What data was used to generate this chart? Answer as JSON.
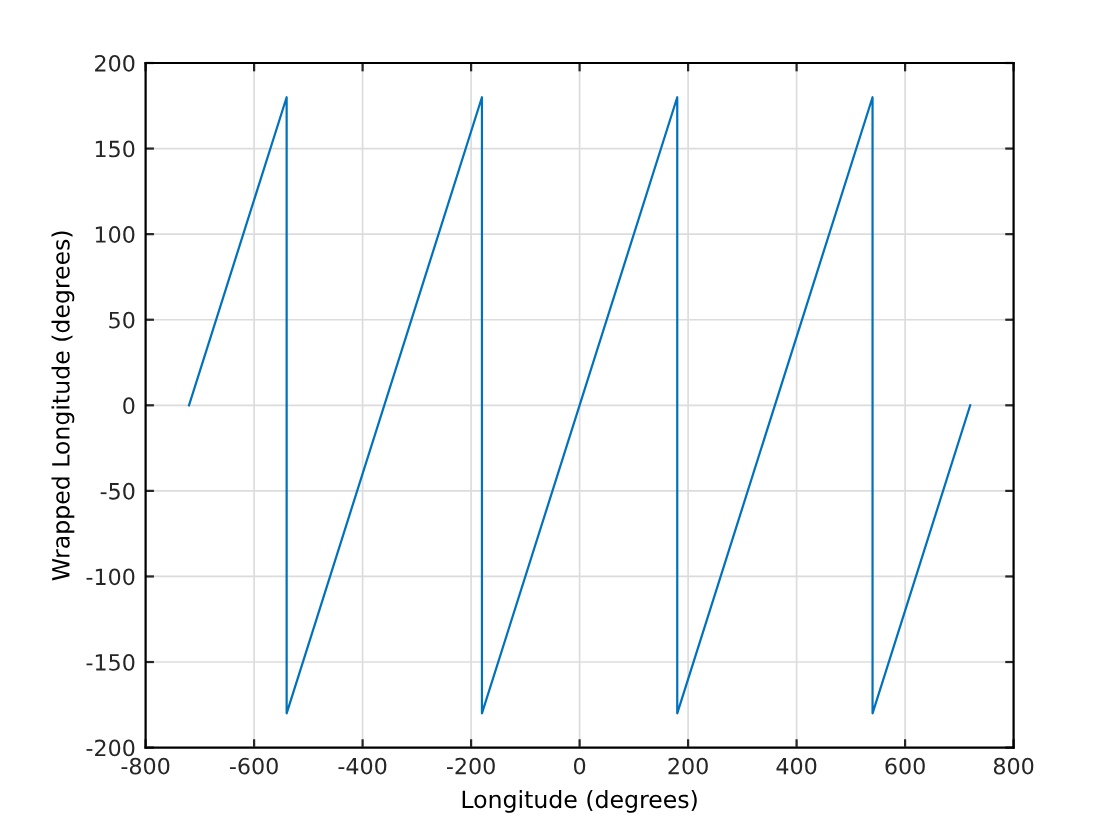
{
  "chart_data": {
    "type": "line",
    "xlabel": "Longitude (degrees)",
    "ylabel": "Wrapped Longitude (degrees)",
    "series": [
      {
        "color": "#0072bd",
        "x": [
          -720,
          -540,
          -540,
          -180,
          -180,
          180,
          180,
          540,
          540,
          720
        ],
        "values": [
          0,
          180,
          -180,
          180,
          -180,
          180,
          -180,
          180,
          -180,
          0
        ]
      }
    ],
    "xlim": [
      -800,
      800
    ],
    "xticks": [
      -800,
      -600,
      -400,
      -200,
      0,
      200,
      400,
      600,
      800
    ],
    "ylim": [
      -200,
      200
    ],
    "yticks": [
      -200,
      -150,
      -100,
      -50,
      0,
      50,
      100,
      150,
      200
    ],
    "grid": true,
    "legend": false
  }
}
